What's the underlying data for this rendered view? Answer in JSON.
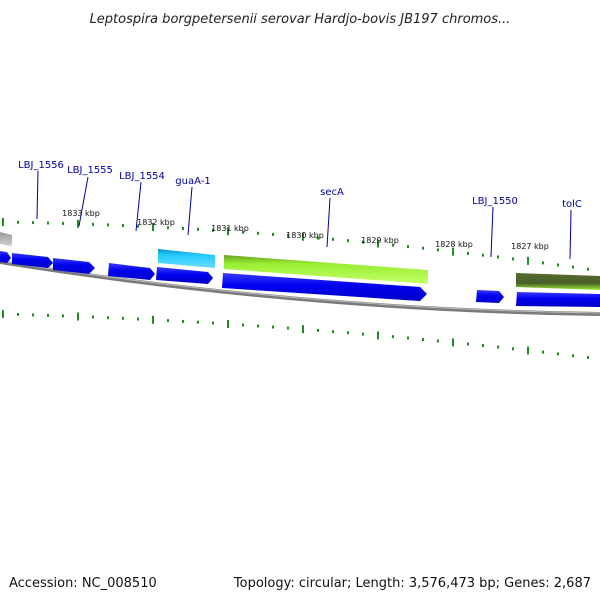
{
  "title": "Leptospira borgpetersenii serovar Hardjo-bovis JB197 chromos...",
  "footer": {
    "accession": "Accession: NC_008510",
    "summary": "Topology: circular; Length: 3,576,473 bp; Genes: 2,687"
  },
  "colors": {
    "gene_blue": "#0000ee",
    "gene_blue_light": "#5a5aff",
    "gene_cyan": "#22c8ff",
    "gene_cyan_dark": "#0aa0d8",
    "gene_green": "#99ee33",
    "gene_green_dark": "#6aa020",
    "gene_olive": "#556b2f",
    "gene_gray": "#b8b8b8",
    "backbone": "#808080",
    "tick_green": "#228b22",
    "label_blue": "#0000a0"
  },
  "gene_labels": [
    {
      "text": "LBJ_1556"
    },
    {
      "text": "LBJ_1555"
    },
    {
      "text": "LBJ_1554"
    },
    {
      "text": "guaA-1"
    },
    {
      "text": "secA"
    },
    {
      "text": "LBJ_1550"
    },
    {
      "text": "tolC"
    }
  ],
  "position_labels": [
    {
      "text": "1833 kbp"
    },
    {
      "text": "1832 kbp"
    },
    {
      "text": "1831 kbp"
    },
    {
      "text": "1830 kbp"
    },
    {
      "text": "1829 kbp"
    },
    {
      "text": "1828 kbp"
    },
    {
      "text": "1827 kbp"
    }
  ]
}
